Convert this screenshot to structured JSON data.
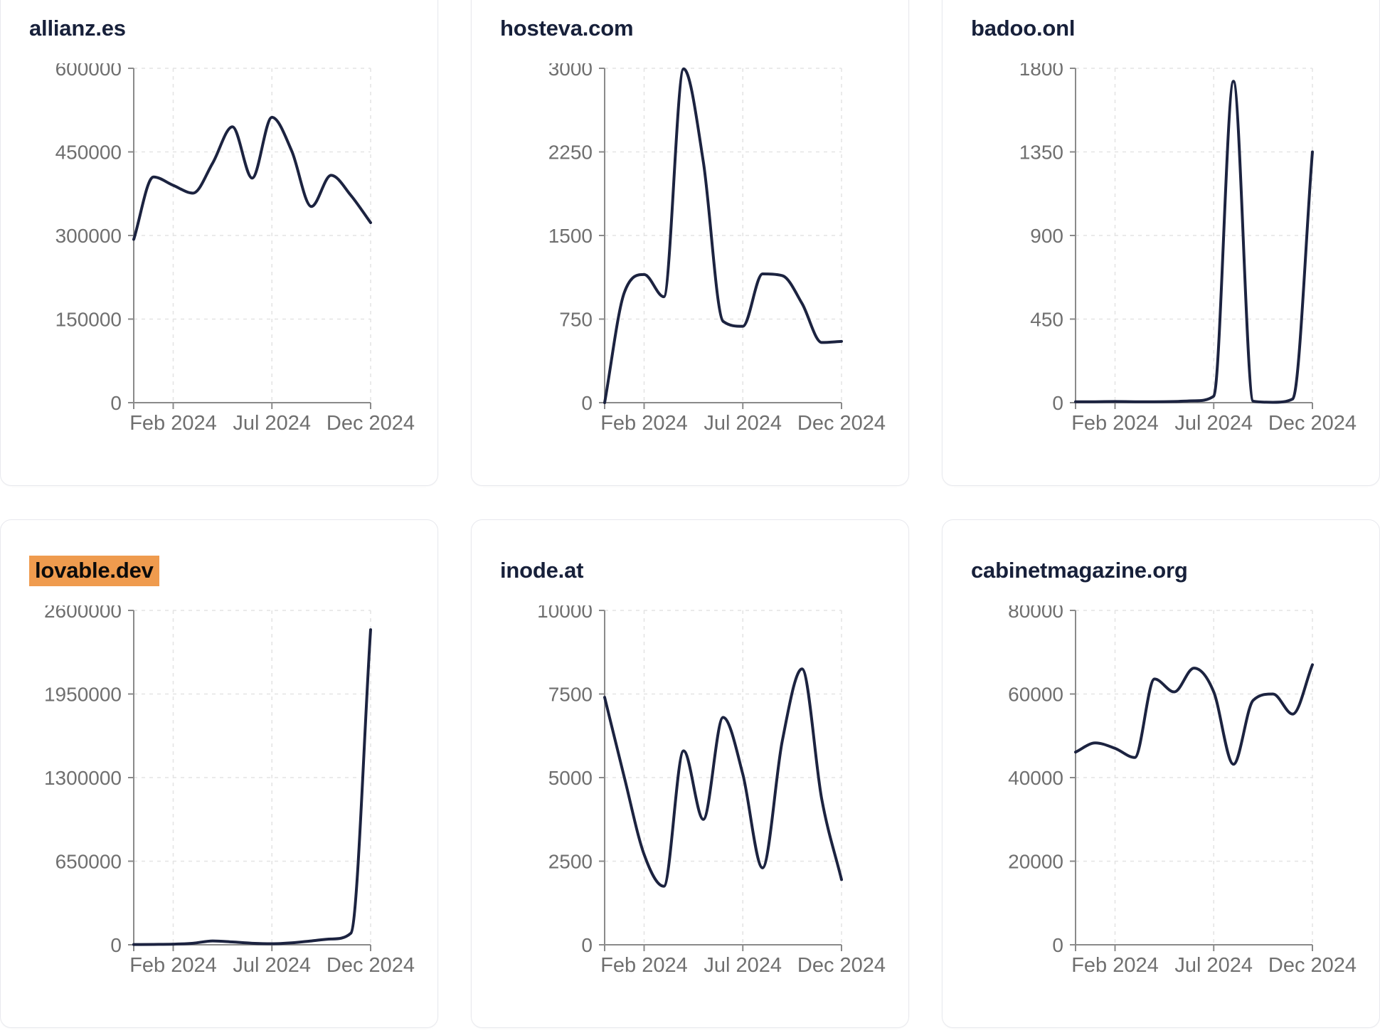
{
  "style": {
    "background": "#ffffff",
    "card_border": "#e8e9ee",
    "title_color": "#17203a",
    "highlight_color": "#ef9b4e",
    "line_color": "#1c2340",
    "axis_color": "#8a8a8a",
    "tick_label_color": "#6f6f6f",
    "grid_color": "#e4e4e4"
  },
  "chart_data": [
    {
      "type": "line",
      "title": "allianz.es",
      "title_highlighted": false,
      "x": [
        "Dec 2023",
        "Jan 2024",
        "Feb 2024",
        "Mar 2024",
        "Apr 2024",
        "May 2024",
        "Jun 2024",
        "Jul 2024",
        "Aug 2024",
        "Sep 2024",
        "Oct 2024",
        "Nov 2024",
        "Dec 2024"
      ],
      "x_tick_labels": [
        "Feb 2024",
        "Jul 2024",
        "Dec 2024"
      ],
      "x_tick_indices": [
        2,
        7,
        12
      ],
      "values": [
        293000,
        405000,
        390000,
        376000,
        430000,
        495000,
        403000,
        512000,
        452000,
        352000,
        408000,
        372000,
        323000
      ],
      "y_ticks": [
        0,
        150000,
        300000,
        450000,
        600000
      ],
      "ylim": [
        0,
        600000
      ],
      "grid": true,
      "legend": false
    },
    {
      "type": "line",
      "title": "hosteva.com",
      "title_highlighted": false,
      "x": [
        "Dec 2023",
        "Jan 2024",
        "Feb 2024",
        "Mar 2024",
        "Apr 2024",
        "May 2024",
        "Jun 2024",
        "Jul 2024",
        "Aug 2024",
        "Sep 2024",
        "Oct 2024",
        "Nov 2024",
        "Dec 2024"
      ],
      "x_tick_labels": [
        "Feb 2024",
        "Jul 2024",
        "Dec 2024"
      ],
      "x_tick_indices": [
        2,
        7,
        12
      ],
      "values": [
        0,
        990,
        1150,
        950,
        2995,
        2160,
        730,
        685,
        1155,
        1140,
        890,
        540,
        550
      ],
      "y_ticks": [
        0,
        750,
        1500,
        2250,
        3000
      ],
      "ylim": [
        0,
        3000
      ],
      "grid": true,
      "legend": false
    },
    {
      "type": "line",
      "title": "badoo.onl",
      "title_highlighted": false,
      "x": [
        "Dec 2023",
        "Jan 2024",
        "Feb 2024",
        "Mar 2024",
        "Apr 2024",
        "May 2024",
        "Jun 2024",
        "Jul 2024",
        "Aug 2024",
        "Sep 2024",
        "Oct 2024",
        "Nov 2024",
        "Dec 2024"
      ],
      "x_tick_labels": [
        "Feb 2024",
        "Jul 2024",
        "Dec 2024"
      ],
      "x_tick_indices": [
        2,
        7,
        12
      ],
      "values": [
        5,
        5,
        6,
        5,
        5,
        6,
        10,
        35,
        1730,
        8,
        2,
        20,
        1350
      ],
      "y_ticks": [
        0,
        450,
        900,
        1350,
        1800
      ],
      "ylim": [
        0,
        1800
      ],
      "grid": true,
      "legend": false
    },
    {
      "type": "line",
      "title": "lovable.dev",
      "title_highlighted": true,
      "x": [
        "Dec 2023",
        "Jan 2024",
        "Feb 2024",
        "Mar 2024",
        "Apr 2024",
        "May 2024",
        "Jun 2024",
        "Jul 2024",
        "Aug 2024",
        "Sep 2024",
        "Oct 2024",
        "Nov 2024",
        "Dec 2024"
      ],
      "x_tick_labels": [
        "Feb 2024",
        "Jul 2024",
        "Dec 2024"
      ],
      "x_tick_indices": [
        2,
        7,
        12
      ],
      "values": [
        2000,
        3000,
        5000,
        12000,
        30000,
        22000,
        12000,
        8000,
        15000,
        30000,
        45000,
        90000,
        2450000
      ],
      "y_ticks": [
        0,
        650000,
        1300000,
        1950000,
        2600000
      ],
      "ylim": [
        0,
        2600000
      ],
      "grid": true,
      "legend": false
    },
    {
      "type": "line",
      "title": "inode.at",
      "title_highlighted": false,
      "x": [
        "Dec 2023",
        "Jan 2024",
        "Feb 2024",
        "Mar 2024",
        "Apr 2024",
        "May 2024",
        "Jun 2024",
        "Jul 2024",
        "Aug 2024",
        "Sep 2024",
        "Oct 2024",
        "Nov 2024",
        "Dec 2024"
      ],
      "x_tick_labels": [
        "Feb 2024",
        "Jul 2024",
        "Dec 2024"
      ],
      "x_tick_indices": [
        2,
        7,
        12
      ],
      "values": [
        7400,
        5000,
        2700,
        1750,
        5800,
        3750,
        6800,
        5100,
        2300,
        6100,
        8250,
        4350,
        1950
      ],
      "y_ticks": [
        0,
        2500,
        5000,
        7500,
        10000
      ],
      "ylim": [
        0,
        10000
      ],
      "grid": true,
      "legend": false
    },
    {
      "type": "line",
      "title": "cabinetmagazine.org",
      "title_highlighted": false,
      "x": [
        "Dec 2023",
        "Jan 2024",
        "Feb 2024",
        "Mar 2024",
        "Apr 2024",
        "May 2024",
        "Jun 2024",
        "Jul 2024",
        "Aug 2024",
        "Sep 2024",
        "Oct 2024",
        "Nov 2024",
        "Dec 2024"
      ],
      "x_tick_labels": [
        "Feb 2024",
        "Jul 2024",
        "Dec 2024"
      ],
      "x_tick_indices": [
        2,
        7,
        12
      ],
      "values": [
        46100,
        48300,
        47000,
        44800,
        63600,
        60500,
        66200,
        60500,
        43200,
        58500,
        60000,
        55200,
        67000
      ],
      "y_ticks": [
        0,
        20000,
        40000,
        60000,
        80000
      ],
      "ylim": [
        0,
        80000
      ],
      "grid": true,
      "legend": false
    }
  ]
}
